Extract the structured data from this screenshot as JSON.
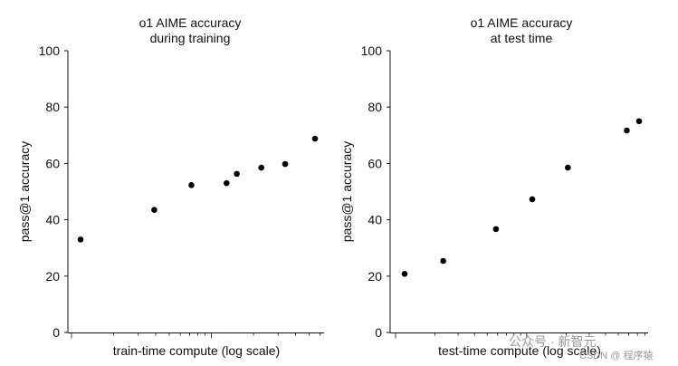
{
  "chart_data": [
    {
      "type": "scatter",
      "title_lines": [
        "o1 AIME accuracy",
        "during training"
      ],
      "xlabel": "train-time compute (log scale)",
      "ylabel": "pass@1 accuracy",
      "x_scale": "log",
      "ylim": [
        0,
        100
      ],
      "yticks": [
        "0",
        "20",
        "40",
        "60",
        "80",
        "100"
      ],
      "grid": false,
      "points": [
        {
          "x": 1.0,
          "y": 33
        },
        {
          "x": 3.46,
          "y": 43.5
        },
        {
          "x": 6.47,
          "y": 52.3
        },
        {
          "x": 11.7,
          "y": 53
        },
        {
          "x": 13.9,
          "y": 56.3
        },
        {
          "x": 21.0,
          "y": 58.5
        },
        {
          "x": 31.4,
          "y": 59.8
        },
        {
          "x": 51.9,
          "y": 68.8
        }
      ]
    },
    {
      "type": "scatter",
      "title_lines": [
        "o1 AIME accuracy",
        "at test time"
      ],
      "xlabel": "test-time compute (log scale)",
      "ylabel": "pass@1 accuracy",
      "x_scale": "log",
      "ylim": [
        0,
        100
      ],
      "yticks": [
        "0",
        "20",
        "40",
        "60",
        "80",
        "100"
      ],
      "grid": false,
      "points": [
        {
          "x": 1.0,
          "y": 20.8
        },
        {
          "x": 2.0,
          "y": 25.4
        },
        {
          "x": 5.16,
          "y": 36.7
        },
        {
          "x": 9.91,
          "y": 47.3
        },
        {
          "x": 18.8,
          "y": 58.5
        },
        {
          "x": 54.2,
          "y": 71.7
        },
        {
          "x": 67.6,
          "y": 75
        }
      ]
    }
  ],
  "watermark": {
    "line1": "公众号 · 新智元",
    "line2": "CSDN @ 程序猿"
  }
}
